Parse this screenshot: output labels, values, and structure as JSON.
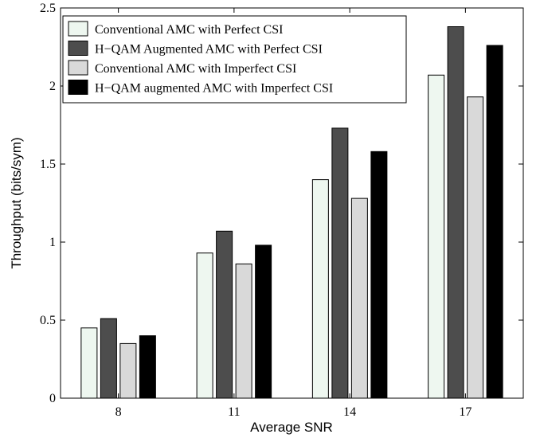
{
  "chart_data": {
    "type": "bar",
    "categories": [
      "8",
      "11",
      "14",
      "17"
    ],
    "series": [
      {
        "name": "Conventional AMC with Perfect CSI",
        "color": "#eef7f0",
        "values": [
          0.45,
          0.93,
          1.4,
          2.07
        ]
      },
      {
        "name": "H−QAM Augmented AMC with Perfect CSI",
        "color": "#4d4d4d",
        "values": [
          0.51,
          1.07,
          1.73,
          2.38
        ]
      },
      {
        "name": "Conventional AMC with Imperfect CSI",
        "color": "#d9d9d9",
        "values": [
          0.35,
          0.86,
          1.28,
          1.93
        ]
      },
      {
        "name": "H−QAM augmented AMC with Imperfect CSI",
        "color": "#000000",
        "values": [
          0.4,
          0.98,
          1.58,
          2.26
        ]
      }
    ],
    "xlabel": "Average SNR",
    "ylabel": "Throughput (bits/sym)",
    "ylim": [
      0,
      2.5
    ],
    "yticks": [
      "0",
      "0.5",
      "1",
      "1.5",
      "2",
      "2.5"
    ],
    "grid": false,
    "legend_position": "top-left"
  }
}
